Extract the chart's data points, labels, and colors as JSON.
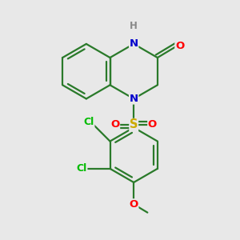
{
  "bg_color": "#e8e8e8",
  "atom_colors": {
    "C": "#1a1a1a",
    "N": "#0000cc",
    "O": "#ff0000",
    "S": "#ccaa00",
    "Cl": "#00bb00",
    "H": "#888888"
  },
  "bond_color": "#1a7a1a",
  "bond_width": 1.6,
  "font_size": 9.5
}
